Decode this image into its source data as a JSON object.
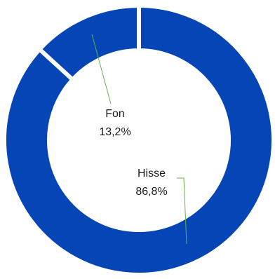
{
  "chart_data": {
    "type": "pie",
    "variant": "donut",
    "categories": [
      "Hisse",
      "Fon"
    ],
    "values": [
      86.8,
      13.2
    ],
    "value_labels": [
      "86,8%",
      "13,2%"
    ],
    "unit": "%",
    "legend": "none",
    "colors": {
      "slices": [
        "#0645B5",
        "#0645B5"
      ],
      "separator": "#ffffff",
      "leader_line": "#6AAE4B",
      "label_text": "#1a1a1a"
    }
  }
}
